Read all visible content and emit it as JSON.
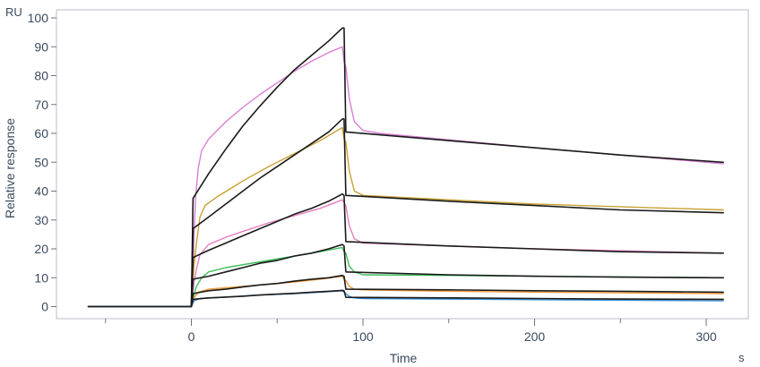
{
  "chart_data": {
    "type": "line",
    "xlabel": "Time",
    "ylabel": "Relative response",
    "x_unit": "s",
    "y_unit": "RU",
    "xlim": [
      -60,
      330
    ],
    "ylim": [
      -2,
      100
    ],
    "x_ticks": [
      0,
      100,
      200,
      300
    ],
    "x_minor_ticks": [
      -50,
      50,
      150,
      250
    ],
    "y_ticks": [
      0,
      10,
      20,
      30,
      40,
      50,
      60,
      70,
      80,
      90,
      100
    ],
    "grid": false,
    "legend": "none",
    "series": [
      {
        "kind": "measured",
        "color": "#d77fd4",
        "points": [
          [
            -60,
            0
          ],
          [
            0,
            0
          ],
          [
            0.5,
            0.3
          ],
          [
            1.5,
            24
          ],
          [
            2.5,
            38
          ],
          [
            4,
            48
          ],
          [
            6,
            54
          ],
          [
            10,
            58
          ],
          [
            20,
            64
          ],
          [
            30,
            69
          ],
          [
            40,
            73.5
          ],
          [
            50,
            77.5
          ],
          [
            60,
            81.5
          ],
          [
            70,
            85
          ],
          [
            80,
            88
          ],
          [
            88,
            90
          ],
          [
            89,
            85
          ],
          [
            90,
            83
          ],
          [
            92,
            72
          ],
          [
            95,
            64
          ],
          [
            100,
            61
          ],
          [
            110,
            60
          ],
          [
            200,
            55
          ],
          [
            310,
            49.5
          ]
        ]
      },
      {
        "kind": "fit",
        "color": "#1a1a1a",
        "points": [
          [
            -60,
            0
          ],
          [
            0,
            0
          ],
          [
            1,
            37.5
          ],
          [
            10,
            46
          ],
          [
            20,
            54.5
          ],
          [
            30,
            62.5
          ],
          [
            40,
            69.5
          ],
          [
            50,
            76
          ],
          [
            60,
            82
          ],
          [
            70,
            87
          ],
          [
            80,
            92
          ],
          [
            88,
            96.5
          ],
          [
            89,
            96.5
          ],
          [
            90,
            60.5
          ],
          [
            150,
            57.5
          ],
          [
            200,
            55
          ],
          [
            250,
            52.5
          ],
          [
            310,
            50
          ]
        ]
      },
      {
        "kind": "measured",
        "color": "#c8a032",
        "points": [
          [
            -60,
            0
          ],
          [
            0,
            0
          ],
          [
            1.5,
            14
          ],
          [
            3,
            22
          ],
          [
            5,
            31
          ],
          [
            8,
            35
          ],
          [
            15,
            38
          ],
          [
            30,
            43.5
          ],
          [
            45,
            48.5
          ],
          [
            60,
            53
          ],
          [
            75,
            57.5
          ],
          [
            88,
            62
          ],
          [
            89,
            58
          ],
          [
            90,
            57
          ],
          [
            92,
            47
          ],
          [
            95,
            40
          ],
          [
            100,
            38.5
          ],
          [
            150,
            37
          ],
          [
            200,
            35.5
          ],
          [
            310,
            33.5
          ]
        ]
      },
      {
        "kind": "fit",
        "color": "#1a1a1a",
        "points": [
          [
            -60,
            0
          ],
          [
            0,
            0
          ],
          [
            1,
            27
          ],
          [
            10,
            31
          ],
          [
            20,
            35.5
          ],
          [
            30,
            40
          ],
          [
            40,
            44.5
          ],
          [
            50,
            48.5
          ],
          [
            60,
            52.5
          ],
          [
            70,
            56.5
          ],
          [
            80,
            60.5
          ],
          [
            88,
            65
          ],
          [
            89,
            65
          ],
          [
            90,
            38.5
          ],
          [
            150,
            36.5
          ],
          [
            200,
            35
          ],
          [
            250,
            33.5
          ],
          [
            310,
            32.5
          ]
        ]
      },
      {
        "kind": "measured",
        "color": "#e67fbe",
        "points": [
          [
            -60,
            0
          ],
          [
            0,
            0
          ],
          [
            1.5,
            8
          ],
          [
            3,
            13
          ],
          [
            5,
            18
          ],
          [
            10,
            21.5
          ],
          [
            20,
            24
          ],
          [
            30,
            26
          ],
          [
            45,
            29
          ],
          [
            60,
            31.5
          ],
          [
            75,
            34
          ],
          [
            88,
            37
          ],
          [
            89,
            36
          ],
          [
            90,
            35
          ],
          [
            92,
            28
          ],
          [
            95,
            23.5
          ],
          [
            100,
            22
          ],
          [
            150,
            21
          ],
          [
            200,
            20
          ],
          [
            310,
            18.5
          ]
        ]
      },
      {
        "kind": "fit",
        "color": "#1a1a1a",
        "points": [
          [
            -60,
            0
          ],
          [
            0,
            0
          ],
          [
            1,
            17
          ],
          [
            10,
            19.5
          ],
          [
            20,
            22
          ],
          [
            30,
            24.5
          ],
          [
            40,
            27
          ],
          [
            50,
            29.5
          ],
          [
            60,
            32
          ],
          [
            70,
            34
          ],
          [
            80,
            36.5
          ],
          [
            88,
            39
          ],
          [
            89,
            38.5
          ],
          [
            90,
            22.5
          ],
          [
            150,
            21
          ],
          [
            200,
            20
          ],
          [
            250,
            19
          ],
          [
            310,
            18.5
          ]
        ]
      },
      {
        "kind": "measured",
        "color": "#3fbf5a",
        "points": [
          [
            -60,
            0
          ],
          [
            0,
            0
          ],
          [
            1.5,
            4
          ],
          [
            3,
            7
          ],
          [
            6,
            10
          ],
          [
            10,
            12
          ],
          [
            20,
            13.5
          ],
          [
            40,
            15.5
          ],
          [
            60,
            17.5
          ],
          [
            75,
            19
          ],
          [
            88,
            20.5
          ],
          [
            89,
            19
          ],
          [
            90,
            18.5
          ],
          [
            92,
            14
          ],
          [
            95,
            12
          ],
          [
            100,
            11
          ],
          [
            150,
            10.8
          ],
          [
            200,
            10.5
          ],
          [
            310,
            10
          ]
        ]
      },
      {
        "kind": "fit",
        "color": "#1a1a1a",
        "points": [
          [
            -60,
            0
          ],
          [
            0,
            0
          ],
          [
            1,
            9.5
          ],
          [
            10,
            10.5
          ],
          [
            20,
            12
          ],
          [
            30,
            13.5
          ],
          [
            40,
            15
          ],
          [
            50,
            16
          ],
          [
            60,
            17.5
          ],
          [
            70,
            18.5
          ],
          [
            80,
            20
          ],
          [
            88,
            21.5
          ],
          [
            89,
            21
          ],
          [
            90,
            12
          ],
          [
            150,
            11
          ],
          [
            200,
            10.5
          ],
          [
            250,
            10.2
          ],
          [
            310,
            10
          ]
        ]
      },
      {
        "kind": "measured",
        "color": "#f29a3a",
        "points": [
          [
            -60,
            0
          ],
          [
            0,
            0
          ],
          [
            1.5,
            3
          ],
          [
            4,
            5
          ],
          [
            10,
            6
          ],
          [
            20,
            6.5
          ],
          [
            40,
            7.5
          ],
          [
            60,
            8.5
          ],
          [
            75,
            9.5
          ],
          [
            88,
            10.5
          ],
          [
            89,
            9.5
          ],
          [
            90,
            9
          ],
          [
            92,
            7
          ],
          [
            95,
            6
          ],
          [
            100,
            5.8
          ],
          [
            150,
            5.3
          ],
          [
            200,
            5
          ],
          [
            310,
            4.5
          ]
        ]
      },
      {
        "kind": "fit",
        "color": "#1a1a1a",
        "points": [
          [
            -60,
            0
          ],
          [
            0,
            0
          ],
          [
            1,
            4.5
          ],
          [
            10,
            5.5
          ],
          [
            20,
            6
          ],
          [
            30,
            6.8
          ],
          [
            40,
            7.5
          ],
          [
            50,
            8
          ],
          [
            60,
            8.8
          ],
          [
            70,
            9.5
          ],
          [
            80,
            10
          ],
          [
            88,
            10.8
          ],
          [
            89,
            10.5
          ],
          [
            90,
            6
          ],
          [
            150,
            5.8
          ],
          [
            200,
            5.5
          ],
          [
            250,
            5.3
          ],
          [
            310,
            5
          ]
        ]
      },
      {
        "kind": "measured",
        "color": "#3a8fd8",
        "points": [
          [
            -60,
            0
          ],
          [
            0,
            0
          ],
          [
            1.5,
            2
          ],
          [
            5,
            2.8
          ],
          [
            20,
            3.3
          ],
          [
            40,
            4
          ],
          [
            60,
            4.5
          ],
          [
            75,
            5
          ],
          [
            88,
            5.5
          ],
          [
            89,
            5
          ],
          [
            90,
            4.5
          ],
          [
            92,
            3.5
          ],
          [
            95,
            3
          ],
          [
            100,
            2.8
          ],
          [
            200,
            2.4
          ],
          [
            310,
            2
          ]
        ]
      },
      {
        "kind": "fit",
        "color": "#1a1a1a",
        "points": [
          [
            -60,
            0
          ],
          [
            0,
            0
          ],
          [
            1,
            2.5
          ],
          [
            10,
            3
          ],
          [
            20,
            3.3
          ],
          [
            30,
            3.6
          ],
          [
            40,
            4
          ],
          [
            50,
            4.3
          ],
          [
            60,
            4.6
          ],
          [
            70,
            5
          ],
          [
            80,
            5.3
          ],
          [
            88,
            5.6
          ],
          [
            89,
            5.5
          ],
          [
            90,
            3.2
          ],
          [
            150,
            3
          ],
          [
            200,
            2.8
          ],
          [
            250,
            2.6
          ],
          [
            310,
            2.5
          ]
        ]
      }
    ]
  }
}
